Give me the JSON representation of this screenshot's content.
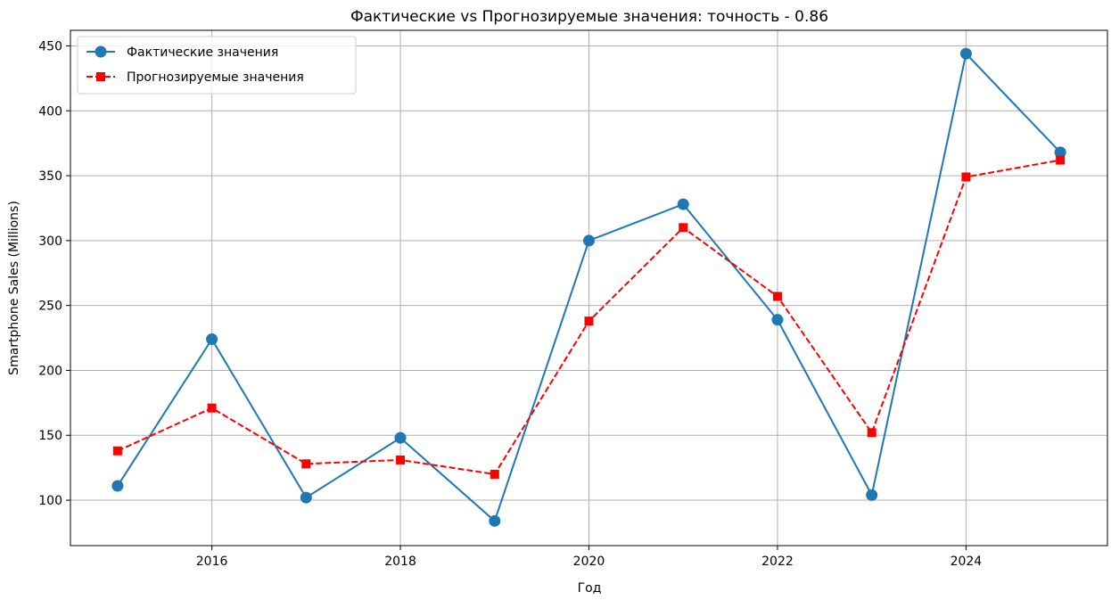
{
  "chart_data": {
    "type": "line",
    "title": "Фактические vs Прогнозируемые значения: точность - 0.86",
    "xlabel": "Год",
    "ylabel": "Smartphone Sales (Millions)",
    "x": [
      2015,
      2016,
      2017,
      2018,
      2019,
      2020,
      2021,
      2022,
      2023,
      2024,
      2025
    ],
    "xlim": [
      2014.5,
      2025.5
    ],
    "ylim": [
      65,
      462
    ],
    "xticks": [
      2016,
      2018,
      2020,
      2022,
      2024
    ],
    "yticks": [
      100,
      150,
      200,
      250,
      300,
      350,
      400,
      450
    ],
    "grid": true,
    "legend_position": "top-left",
    "series": [
      {
        "name": "Фактические значения",
        "color": "#1f77b4",
        "line_style": "solid",
        "marker": "circle",
        "values": [
          111,
          224,
          102,
          148,
          84,
          300,
          328,
          239,
          104,
          444,
          368
        ]
      },
      {
        "name": "Прогнозируемые значения",
        "color": "#ff0000",
        "line_style": "dashed",
        "marker": "square",
        "values": [
          138,
          171,
          128,
          131,
          120,
          238,
          310,
          257,
          152,
          349,
          362
        ]
      }
    ]
  }
}
